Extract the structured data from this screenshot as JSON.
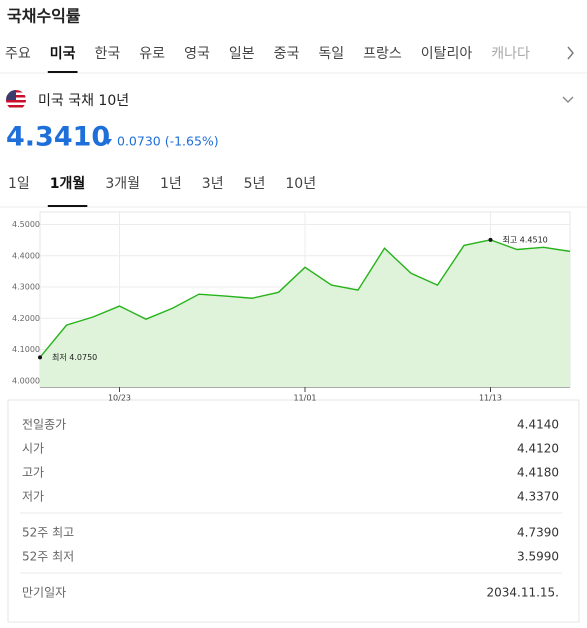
{
  "header": {
    "title": "국채수익률"
  },
  "tabs": {
    "items": [
      "주요",
      "미국",
      "한국",
      "유로",
      "영국",
      "일본",
      "중국",
      "독일",
      "프랑스",
      "이탈리아",
      "캐나다"
    ],
    "selected": 1
  },
  "instrument": {
    "name": "미국 국채 10년",
    "price": "4.3410",
    "change": "0.0730 (-1.65%)"
  },
  "periods": {
    "items": [
      "1일",
      "1개월",
      "3개월",
      "1년",
      "3년",
      "5년",
      "10년"
    ],
    "selected": 1
  },
  "chart_data": {
    "type": "line",
    "categories": [
      null,
      null,
      null,
      "10/23",
      null,
      null,
      null,
      null,
      null,
      null,
      "11/01",
      null,
      null,
      null,
      null,
      null,
      null,
      "11/13",
      null,
      null,
      null
    ],
    "values": [
      4.075,
      4.178,
      4.204,
      4.239,
      4.197,
      4.232,
      4.277,
      4.271,
      4.264,
      4.283,
      4.363,
      4.306,
      4.29,
      4.424,
      4.344,
      4.306,
      4.433,
      4.451,
      4.42,
      4.427,
      4.414
    ],
    "color": "#27b31b",
    "fill": "#def3d9",
    "ylim": [
      3.98,
      4.54
    ],
    "yticks": [
      {
        "value": 4.0,
        "label": "4.0000"
      },
      {
        "value": 4.1,
        "label": "4.1000"
      },
      {
        "value": 4.2,
        "label": "4.2000"
      },
      {
        "value": 4.3,
        "label": "4.3000"
      },
      {
        "value": 4.4,
        "label": "4.4000"
      },
      {
        "value": 4.5,
        "label": "4.5000"
      }
    ],
    "grid": true,
    "min_label": "최저 4.0750",
    "max_label": "최고 4.4510"
  },
  "stats": {
    "groups": [
      [
        [
          "전일종가",
          "4.4140"
        ],
        [
          "시가",
          "4.4120"
        ],
        [
          "고가",
          "4.4180"
        ],
        [
          "저가",
          "4.3370"
        ]
      ],
      [
        [
          "52주 최고",
          "4.7390"
        ],
        [
          "52주 최저",
          "3.5990"
        ]
      ],
      [
        [
          "만기일자",
          "2034.11.15."
        ]
      ]
    ]
  }
}
